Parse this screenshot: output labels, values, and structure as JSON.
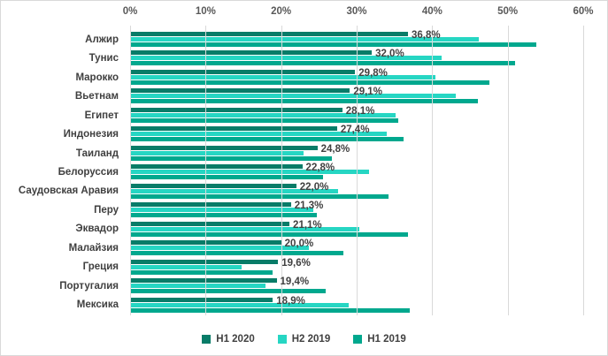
{
  "chart_data": {
    "type": "bar",
    "orientation": "horizontal",
    "title": "",
    "categories": [
      "Алжир",
      "Тунис",
      "Марокко",
      "Вьетнам",
      "Египет",
      "Индонезия",
      "Таиланд",
      "Белоруссия",
      "Саудовская Аравия",
      "Перу",
      "Эквадор",
      "Малайзия",
      "Греция",
      "Португалия",
      "Мексика"
    ],
    "series": [
      {
        "name": "H1 2020",
        "color": "#087c68",
        "values": [
          36.8,
          32.0,
          29.8,
          29.1,
          28.1,
          27.4,
          24.8,
          22.8,
          22.0,
          21.3,
          21.1,
          20.0,
          19.6,
          19.4,
          18.9
        ],
        "labels": [
          "36,8%",
          "32,0%",
          "29,8%",
          "29,1%",
          "28,1%",
          "27,4%",
          "24,8%",
          "22,8%",
          "22,0%",
          "21,3%",
          "21,1%",
          "20,0%",
          "19,6%",
          "19,4%",
          "18,9%"
        ]
      },
      {
        "name": "H2 2019",
        "color": "#26d6c3",
        "values": [
          46.2,
          41.3,
          40.4,
          43.1,
          35.2,
          34.0,
          23.0,
          31.6,
          27.5,
          24.2,
          30.3,
          23.7,
          14.8,
          17.9,
          29.0
        ]
      },
      {
        "name": "H1 2019",
        "color": "#00a88e",
        "values": [
          53.8,
          51.0,
          47.6,
          46.0,
          35.5,
          36.2,
          26.7,
          25.6,
          34.2,
          24.7,
          36.8,
          28.2,
          18.9,
          25.9,
          37.0
        ]
      }
    ],
    "x_axis": {
      "position": "top",
      "min": 0,
      "max": 60,
      "ticks": [
        "0%",
        "10%",
        "20%",
        "30%",
        "40%",
        "50%",
        "60%"
      ]
    },
    "legend": {
      "position": "bottom",
      "entries": [
        "H1 2020",
        "H2 2019",
        "H1 2019"
      ]
    },
    "grid": true,
    "value_labels_series": "H1 2020",
    "gridline_color": "#d9d9d9"
  }
}
